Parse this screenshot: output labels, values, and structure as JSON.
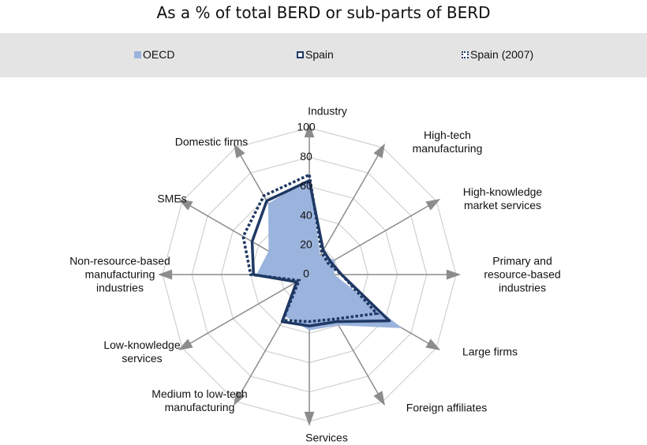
{
  "chart_data": {
    "type": "radar",
    "title": "As a % of total BERD or sub-parts of BERD",
    "categories": [
      "Industry",
      "High-tech\nmanufacturing",
      "High-knowledge\nmarket services",
      "Primary and\nresource-based\nindustries",
      "Large firms",
      "Foreign affiliates",
      "Services",
      "Medium to low-tech\nmanufacturing",
      "Low-knowledge\nservices",
      "Non-resource-based\nmanufacturing\nindustries",
      "SMEs",
      "Domestic firms"
    ],
    "series": [
      {
        "name": "OECD",
        "color": "#9bb4dd",
        "values": [
          65,
          15,
          20,
          17,
          73,
          40,
          38,
          33,
          10,
          36,
          32,
          56
        ]
      },
      {
        "name": "Spain",
        "color": "#1f3864",
        "values": [
          64,
          19,
          17,
          22,
          63,
          37,
          35,
          37,
          10,
          38,
          45,
          58
        ]
      },
      {
        "name": "Spain (2007)",
        "color": "#1f3864",
        "values": [
          68,
          17,
          15,
          22,
          53,
          35,
          32,
          36,
          8,
          40,
          52,
          62
        ]
      }
    ],
    "ylim": [
      0,
      100
    ],
    "yticks": [
      0,
      20,
      40,
      60,
      80,
      100
    ],
    "grid": true
  }
}
